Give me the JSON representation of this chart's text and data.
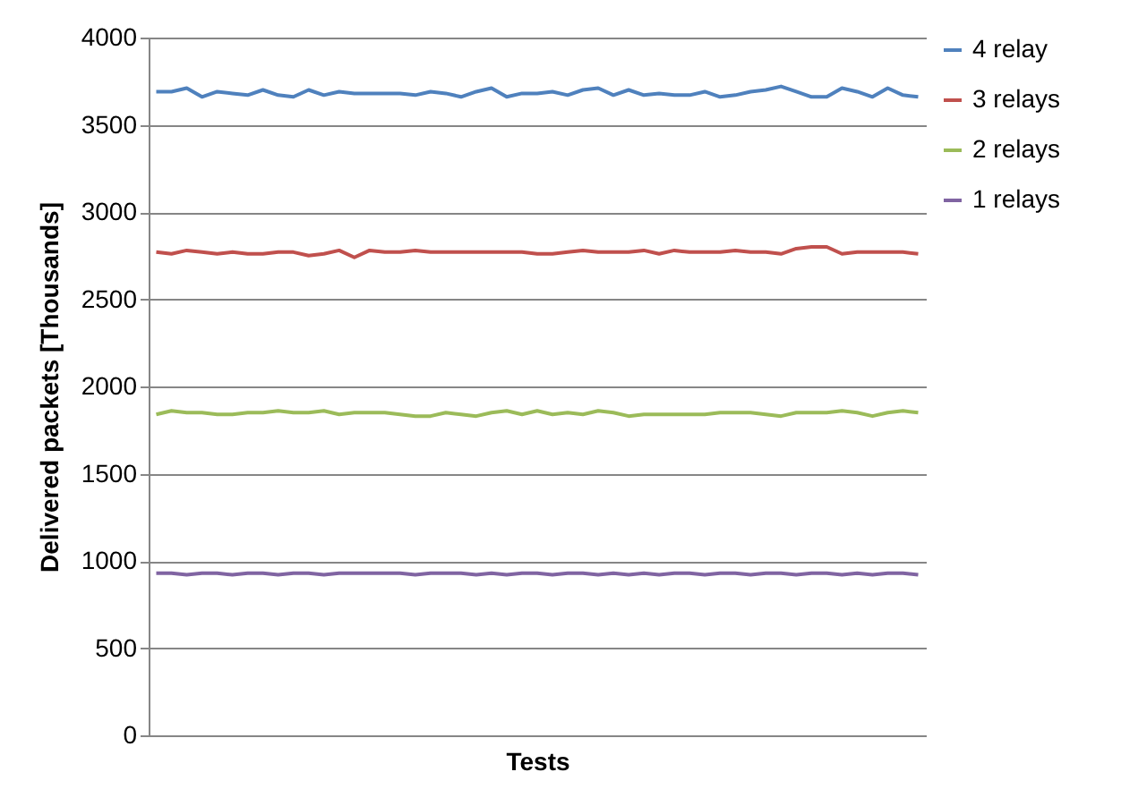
{
  "chart_data": {
    "type": "line",
    "xlabel": "Tests",
    "ylabel": "Delivered packets [Thousands]",
    "categories": [
      null,
      null,
      null,
      null,
      null,
      null,
      null,
      null,
      null,
      null,
      null,
      null,
      null,
      null,
      null,
      null,
      null,
      null,
      null,
      null,
      null,
      null,
      null,
      null,
      null,
      null,
      null,
      null,
      null,
      null,
      null,
      null,
      null,
      null,
      null,
      null,
      null,
      null,
      null,
      null,
      null,
      null,
      null,
      null,
      null,
      null,
      null,
      null,
      null,
      null,
      null
    ],
    "series": [
      {
        "name": "4 relay",
        "color": "#4f81bd",
        "values": [
          3690,
          3690,
          3710,
          3660,
          3690,
          3680,
          3670,
          3700,
          3670,
          3660,
          3700,
          3670,
          3690,
          3680,
          3680,
          3680,
          3680,
          3670,
          3690,
          3680,
          3660,
          3690,
          3710,
          3660,
          3680,
          3680,
          3690,
          3670,
          3700,
          3710,
          3670,
          3700,
          3670,
          3680,
          3670,
          3670,
          3690,
          3660,
          3670,
          3690,
          3700,
          3720,
          3690,
          3660,
          3660,
          3710,
          3690,
          3660,
          3710,
          3670,
          3660
        ]
      },
      {
        "name": "3 relays",
        "color": "#c0504d",
        "values": [
          2770,
          2760,
          2780,
          2770,
          2760,
          2770,
          2760,
          2760,
          2770,
          2770,
          2750,
          2760,
          2780,
          2740,
          2780,
          2770,
          2770,
          2780,
          2770,
          2770,
          2770,
          2770,
          2770,
          2770,
          2770,
          2760,
          2760,
          2770,
          2780,
          2770,
          2770,
          2770,
          2780,
          2760,
          2780,
          2770,
          2770,
          2770,
          2780,
          2770,
          2770,
          2760,
          2790,
          2800,
          2800,
          2760,
          2770,
          2770,
          2770,
          2770,
          2760
        ]
      },
      {
        "name": "2 relays",
        "color": "#9bbb59",
        "values": [
          1840,
          1860,
          1850,
          1850,
          1840,
          1840,
          1850,
          1850,
          1860,
          1850,
          1850,
          1860,
          1840,
          1850,
          1850,
          1850,
          1840,
          1830,
          1830,
          1850,
          1840,
          1830,
          1850,
          1860,
          1840,
          1860,
          1840,
          1850,
          1840,
          1860,
          1850,
          1830,
          1840,
          1840,
          1840,
          1840,
          1840,
          1850,
          1850,
          1850,
          1840,
          1830,
          1850,
          1850,
          1850,
          1860,
          1850,
          1830,
          1850,
          1860,
          1850
        ]
      },
      {
        "name": "1 relays",
        "color": "#8064a2",
        "values": [
          930,
          930,
          920,
          930,
          930,
          920,
          930,
          930,
          920,
          930,
          930,
          920,
          930,
          930,
          930,
          930,
          930,
          920,
          930,
          930,
          930,
          920,
          930,
          920,
          930,
          930,
          920,
          930,
          930,
          920,
          930,
          920,
          930,
          920,
          930,
          930,
          920,
          930,
          930,
          920,
          930,
          930,
          920,
          930,
          930,
          920,
          930,
          920,
          930,
          930,
          920
        ]
      }
    ],
    "ylim": [
      0,
      4000
    ],
    "yticks": [
      0,
      500,
      1000,
      1500,
      2000,
      2500,
      3000,
      3500,
      4000
    ],
    "grid": "y",
    "legend": "right",
    "marker": "none",
    "line_style": "solid"
  }
}
